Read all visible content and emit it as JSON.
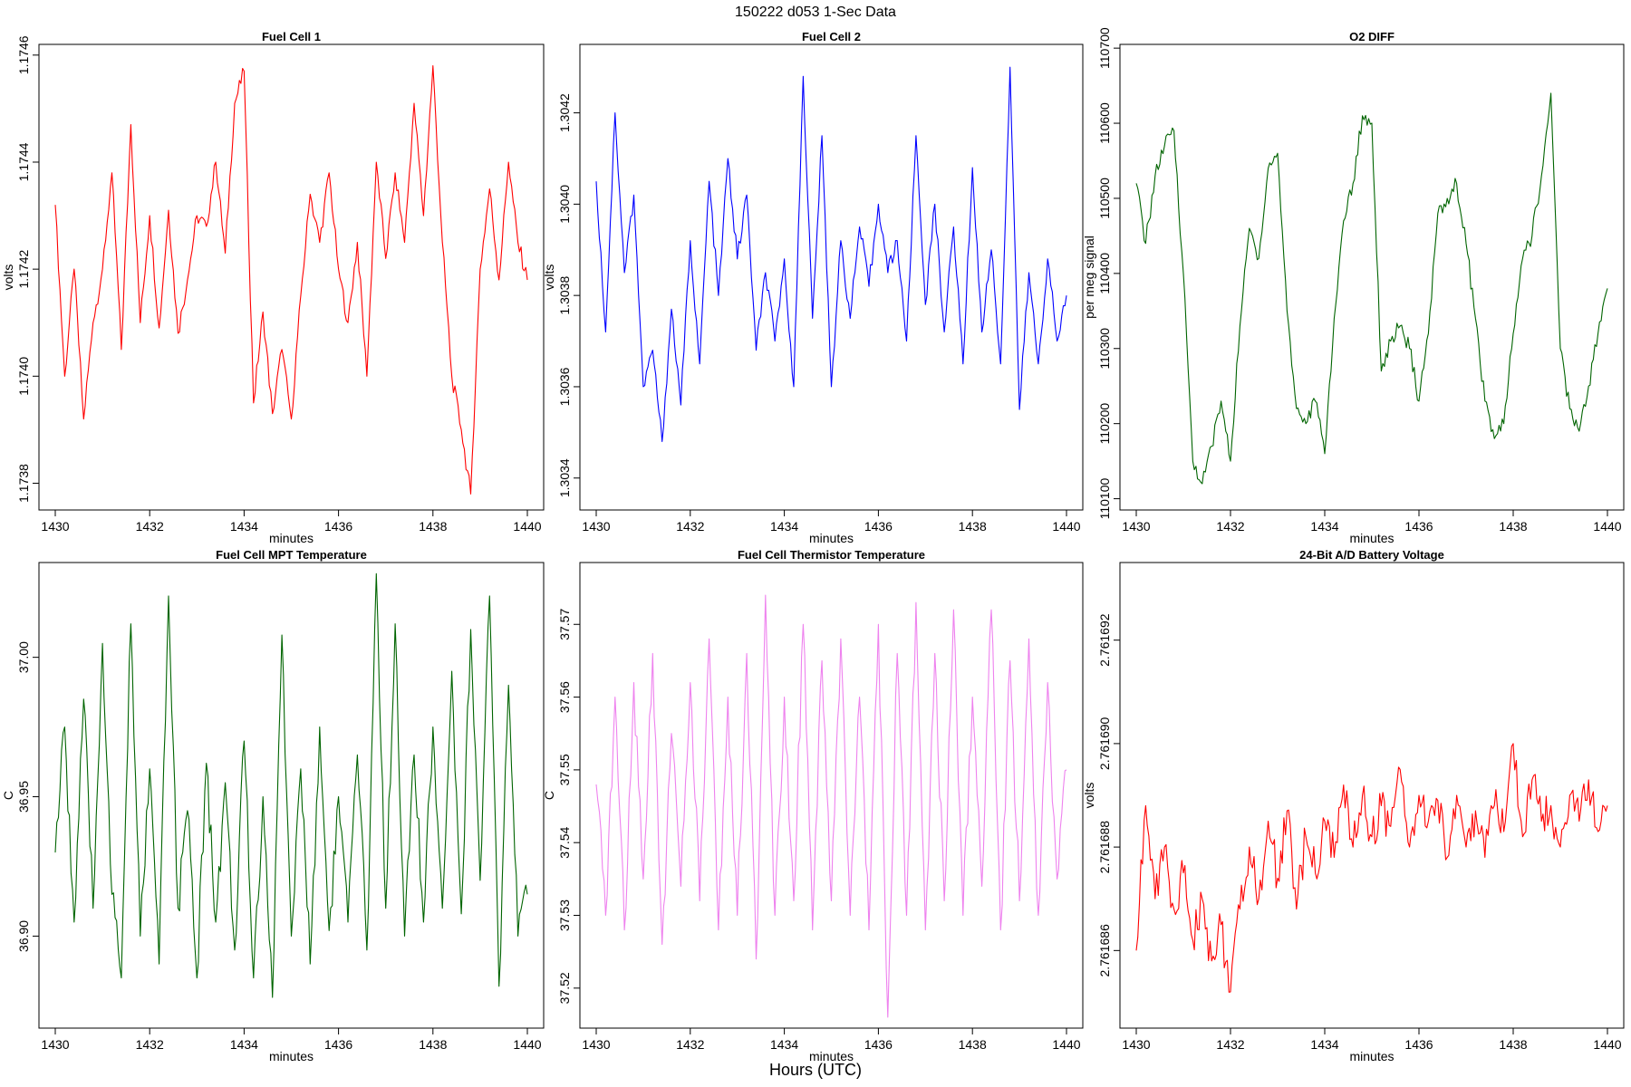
{
  "title": "150222   d053   1-Sec Data",
  "outer_xlabel": "Hours (UTC)",
  "chart_data": [
    {
      "type": "line",
      "title": "Fuel Cell 1",
      "xlabel": "minutes",
      "ylabel": "volts",
      "color": "#ff0000",
      "xlim": [
        1430,
        1440
      ],
      "ylim": [
        1.17375,
        1.17462
      ],
      "x_ticks": [
        1430,
        1432,
        1434,
        1436,
        1438,
        1440
      ],
      "y_ticks": [
        "1.1738",
        "1.1740",
        "1.1742",
        "1.1744",
        "1.1746"
      ],
      "x": [
        1430.0,
        1430.2,
        1430.4,
        1430.6,
        1430.8,
        1431.0,
        1431.2,
        1431.4,
        1431.6,
        1431.8,
        1432.0,
        1432.2,
        1432.4,
        1432.6,
        1432.8,
        1433.0,
        1433.2,
        1433.4,
        1433.6,
        1433.8,
        1434.0,
        1434.2,
        1434.4,
        1434.6,
        1434.8,
        1435.0,
        1435.2,
        1435.4,
        1435.6,
        1435.8,
        1436.0,
        1436.2,
        1436.4,
        1436.6,
        1436.8,
        1437.0,
        1437.2,
        1437.4,
        1437.6,
        1437.8,
        1438.0,
        1438.2,
        1438.4,
        1438.6,
        1438.8,
        1439.0,
        1439.2,
        1439.4,
        1439.6,
        1439.8,
        1440.0
      ],
      "values": [
        1.17432,
        1.174,
        1.1742,
        1.17392,
        1.1741,
        1.1742,
        1.17438,
        1.17405,
        1.17447,
        1.1741,
        1.1743,
        1.17409,
        1.17431,
        1.17408,
        1.17418,
        1.1743,
        1.17428,
        1.1744,
        1.17423,
        1.17451,
        1.17457,
        1.17395,
        1.17412,
        1.17393,
        1.17405,
        1.17392,
        1.17415,
        1.17434,
        1.17425,
        1.17438,
        1.1742,
        1.1741,
        1.17425,
        1.174,
        1.1744,
        1.17422,
        1.17438,
        1.17425,
        1.17451,
        1.1743,
        1.17458,
        1.17425,
        1.174,
        1.1739,
        1.17378,
        1.1742,
        1.17435,
        1.17418,
        1.1744,
        1.17425,
        1.17418
      ]
    },
    {
      "type": "line",
      "title": "Fuel Cell 2",
      "xlabel": "minutes",
      "ylabel": "volts",
      "color": "#0000ff",
      "xlim": [
        1430,
        1440
      ],
      "ylim": [
        1.30333,
        1.30435
      ],
      "x_ticks": [
        1430,
        1432,
        1434,
        1436,
        1438,
        1440
      ],
      "y_ticks": [
        "1.3034",
        "1.3036",
        "1.3038",
        "1.3040",
        "1.3042"
      ],
      "x": [
        1430.0,
        1430.2,
        1430.4,
        1430.6,
        1430.8,
        1431.0,
        1431.2,
        1431.4,
        1431.6,
        1431.8,
        1432.0,
        1432.2,
        1432.4,
        1432.6,
        1432.8,
        1433.0,
        1433.2,
        1433.4,
        1433.6,
        1433.8,
        1434.0,
        1434.2,
        1434.4,
        1434.6,
        1434.8,
        1435.0,
        1435.2,
        1435.4,
        1435.6,
        1435.8,
        1436.0,
        1436.2,
        1436.4,
        1436.6,
        1436.8,
        1437.0,
        1437.2,
        1437.4,
        1437.6,
        1437.8,
        1438.0,
        1438.2,
        1438.4,
        1438.6,
        1438.8,
        1439.0,
        1439.2,
        1439.4,
        1439.6,
        1439.8,
        1440.0
      ],
      "values": [
        1.30405,
        1.30372,
        1.3042,
        1.30385,
        1.30402,
        1.3036,
        1.30368,
        1.30348,
        1.30377,
        1.30356,
        1.30392,
        1.30365,
        1.30405,
        1.3038,
        1.3041,
        1.30388,
        1.30402,
        1.30368,
        1.30385,
        1.3037,
        1.30388,
        1.3036,
        1.30428,
        1.30375,
        1.30415,
        1.3036,
        1.30392,
        1.30375,
        1.30395,
        1.30382,
        1.304,
        1.30385,
        1.30392,
        1.3037,
        1.30415,
        1.30378,
        1.304,
        1.30372,
        1.30395,
        1.30365,
        1.30408,
        1.30372,
        1.3039,
        1.30365,
        1.3043,
        1.30355,
        1.30385,
        1.30365,
        1.30388,
        1.3037,
        1.3038
      ]
    },
    {
      "type": "line",
      "title": "O2 DIFF",
      "xlabel": "minutes",
      "ylabel": "per meg signal",
      "color": "#006400",
      "xlim": [
        1430,
        1440
      ],
      "ylim": [
        110085,
        110705
      ],
      "x_ticks": [
        1430,
        1432,
        1434,
        1436,
        1438,
        1440
      ],
      "y_ticks": [
        "110100",
        "110200",
        "110300",
        "110400",
        "110500",
        "110600",
        "110700"
      ],
      "x": [
        1430.0,
        1430.2,
        1430.4,
        1430.6,
        1430.8,
        1431.0,
        1431.2,
        1431.4,
        1431.6,
        1431.8,
        1432.0,
        1432.2,
        1432.4,
        1432.6,
        1432.8,
        1433.0,
        1433.2,
        1433.4,
        1433.6,
        1433.8,
        1434.0,
        1434.2,
        1434.4,
        1434.6,
        1434.8,
        1435.0,
        1435.2,
        1435.4,
        1435.6,
        1435.8,
        1436.0,
        1436.2,
        1436.4,
        1436.6,
        1436.8,
        1437.0,
        1437.2,
        1437.4,
        1437.6,
        1437.8,
        1438.0,
        1438.2,
        1438.4,
        1438.6,
        1438.8,
        1439.0,
        1439.2,
        1439.4,
        1439.6,
        1439.8,
        1440.0
      ],
      "values": [
        110520,
        110440,
        110530,
        110570,
        110590,
        110400,
        110150,
        110120,
        110170,
        110230,
        110150,
        110330,
        110460,
        110420,
        110540,
        110560,
        110350,
        110220,
        110200,
        110230,
        110160,
        110340,
        110470,
        110520,
        110610,
        110600,
        110270,
        110310,
        110330,
        110300,
        110230,
        110320,
        110480,
        110500,
        110520,
        110440,
        110340,
        110230,
        110180,
        110200,
        110320,
        110420,
        110450,
        110530,
        110640,
        110300,
        110220,
        110190,
        110250,
        110320,
        110380
      ]
    },
    {
      "type": "line",
      "title": "Fuel Cell MPT Temperature",
      "xlabel": "minutes",
      "ylabel": "C",
      "color": "#006400",
      "xlim": [
        1430,
        1440
      ],
      "ylim": [
        36.867,
        37.034
      ],
      "x_ticks": [
        1430,
        1432,
        1434,
        1436,
        1438,
        1440
      ],
      "y_ticks": [
        "36.90",
        "36.95",
        "37.00"
      ],
      "x": [
        1430.0,
        1430.2,
        1430.4,
        1430.6,
        1430.8,
        1431.0,
        1431.2,
        1431.4,
        1431.6,
        1431.8,
        1432.0,
        1432.2,
        1432.4,
        1432.6,
        1432.8,
        1433.0,
        1433.2,
        1433.4,
        1433.6,
        1433.8,
        1434.0,
        1434.2,
        1434.4,
        1434.6,
        1434.8,
        1435.0,
        1435.2,
        1435.4,
        1435.6,
        1435.8,
        1436.0,
        1436.2,
        1436.4,
        1436.6,
        1436.8,
        1437.0,
        1437.2,
        1437.4,
        1437.6,
        1437.8,
        1438.0,
        1438.2,
        1438.4,
        1438.6,
        1438.8,
        1439.0,
        1439.2,
        1439.4,
        1439.6,
        1439.8,
        1440.0
      ],
      "values": [
        36.93,
        36.975,
        36.905,
        36.985,
        36.91,
        37.005,
        36.915,
        36.885,
        37.012,
        36.9,
        36.96,
        36.89,
        37.022,
        36.91,
        36.945,
        36.885,
        36.962,
        36.905,
        36.955,
        36.895,
        36.97,
        36.885,
        36.95,
        36.878,
        37.008,
        36.9,
        36.96,
        36.89,
        36.975,
        36.902,
        36.95,
        36.905,
        36.965,
        36.895,
        37.03,
        36.91,
        37.012,
        36.9,
        36.965,
        36.905,
        36.975,
        36.91,
        36.995,
        36.908,
        37.01,
        36.92,
        37.022,
        36.882,
        36.99,
        36.9,
        36.915
      ]
    },
    {
      "type": "line",
      "title": "Fuel Cell Thermistor Temperature",
      "xlabel": "minutes",
      "ylabel": "C",
      "color": "#ee82ee",
      "xlim": [
        1430,
        1440
      ],
      "ylim": [
        37.5145,
        37.5785
      ],
      "x_ticks": [
        1430,
        1432,
        1434,
        1436,
        1438,
        1440
      ],
      "y_ticks": [
        "37.52",
        "37.53",
        "37.54",
        "37.55",
        "37.56",
        "37.57"
      ],
      "x": [
        1430.0,
        1430.2,
        1430.4,
        1430.6,
        1430.8,
        1431.0,
        1431.2,
        1431.4,
        1431.6,
        1431.8,
        1432.0,
        1432.2,
        1432.4,
        1432.6,
        1432.8,
        1433.0,
        1433.2,
        1433.4,
        1433.6,
        1433.8,
        1434.0,
        1434.2,
        1434.4,
        1434.6,
        1434.8,
        1435.0,
        1435.2,
        1435.4,
        1435.6,
        1435.8,
        1436.0,
        1436.2,
        1436.4,
        1436.6,
        1436.8,
        1437.0,
        1437.2,
        1437.4,
        1437.6,
        1437.8,
        1438.0,
        1438.2,
        1438.4,
        1438.6,
        1438.8,
        1439.0,
        1439.2,
        1439.4,
        1439.6,
        1439.8,
        1440.0
      ],
      "values": [
        37.548,
        37.53,
        37.56,
        37.528,
        37.562,
        37.535,
        37.566,
        37.526,
        37.555,
        37.534,
        37.562,
        37.532,
        37.568,
        37.528,
        37.56,
        37.53,
        37.566,
        37.524,
        37.574,
        37.53,
        37.56,
        37.532,
        37.57,
        37.528,
        37.565,
        37.532,
        37.568,
        37.53,
        37.56,
        37.528,
        37.57,
        37.516,
        37.566,
        37.53,
        37.573,
        37.528,
        37.566,
        37.532,
        37.572,
        37.53,
        37.56,
        37.534,
        37.572,
        37.528,
        37.565,
        37.532,
        37.568,
        37.53,
        37.562,
        37.535,
        37.55
      ]
    },
    {
      "type": "line",
      "title": "24-Bit A/D Battery Voltage",
      "xlabel": "minutes",
      "ylabel": "volts",
      "color": "#ff0000",
      "xlim": [
        1430,
        1440
      ],
      "ylim": [
        2.7616845,
        2.7616935
      ],
      "x_ticks": [
        1430,
        1432,
        1434,
        1436,
        1438,
        1440
      ],
      "y_ticks": [
        "2.761686",
        "2.761688",
        "2.761690",
        "2.761692"
      ],
      "x": [
        1430.0,
        1430.2,
        1430.4,
        1430.6,
        1430.8,
        1431.0,
        1431.2,
        1431.4,
        1431.6,
        1431.8,
        1432.0,
        1432.2,
        1432.4,
        1432.6,
        1432.8,
        1433.0,
        1433.2,
        1433.4,
        1433.6,
        1433.8,
        1434.0,
        1434.2,
        1434.4,
        1434.6,
        1434.8,
        1435.0,
        1435.2,
        1435.4,
        1435.6,
        1435.8,
        1436.0,
        1436.2,
        1436.4,
        1436.6,
        1436.8,
        1437.0,
        1437.2,
        1437.4,
        1437.6,
        1437.8,
        1438.0,
        1438.2,
        1438.4,
        1438.6,
        1438.8,
        1439.0,
        1439.2,
        1439.4,
        1439.6,
        1439.8,
        1440.0
      ],
      "values": [
        2.761686,
        2.7616888,
        2.761687,
        2.761688,
        2.7616868,
        2.7616875,
        2.7616862,
        2.761687,
        2.7616858,
        2.7616865,
        2.7616852,
        2.7616868,
        2.761688,
        2.761687,
        2.7616885,
        2.7616874,
        2.7616887,
        2.7616868,
        2.7616882,
        2.7616875,
        2.7616885,
        2.7616878,
        2.7616892,
        2.761688,
        2.761689,
        2.7616882,
        2.7616888,
        2.7616884,
        2.7616895,
        2.761688,
        2.761689,
        2.7616885,
        2.7616889,
        2.7616878,
        2.761689,
        2.761688,
        2.7616887,
        2.7616878,
        2.7616888,
        2.7616883,
        2.76169,
        2.7616882,
        2.7616893,
        2.7616885,
        2.7616888,
        2.761688,
        2.761689,
        2.7616885,
        2.7616893,
        2.7616883,
        2.7616888
      ]
    }
  ]
}
